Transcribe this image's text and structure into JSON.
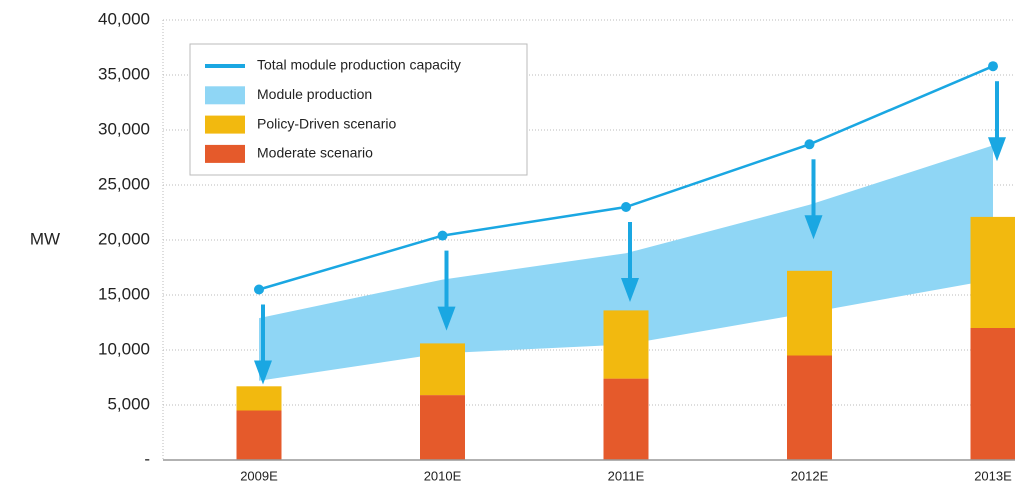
{
  "chart_data": {
    "type": "combo",
    "y_label": "MW",
    "categories": [
      "2009E",
      "2010E",
      "2011E",
      "2012E",
      "2013E"
    ],
    "series": [
      {
        "name": "Total module production capacity",
        "type": "line",
        "color": "#1aa7e2",
        "values": [
          15500,
          20400,
          23000,
          28700,
          35800
        ]
      },
      {
        "name": "Module production",
        "type": "band",
        "color": "#8fd6f5",
        "low": [
          7200,
          9700,
          10500,
          13400,
          16400
        ],
        "high": [
          12900,
          16400,
          18800,
          23200,
          28600
        ]
      },
      {
        "name": "Policy-Driven scenario",
        "type": "bar",
        "color": "#f2b90f",
        "values": [
          2200,
          4700,
          6200,
          7700,
          10100
        ]
      },
      {
        "name": "Moderate scenario",
        "type": "bar",
        "color": "#e55a2b",
        "values": [
          4500,
          5900,
          7400,
          9500,
          12000
        ]
      }
    ],
    "ylim": [
      0,
      40000
    ],
    "yticks": [
      {
        "value": 0,
        "label": "-"
      },
      {
        "value": 5000,
        "label": "5,000"
      },
      {
        "value": 10000,
        "label": "10,000"
      },
      {
        "value": 15000,
        "label": "15,000"
      },
      {
        "value": 20000,
        "label": "20,000"
      },
      {
        "value": 25000,
        "label": "25,000"
      },
      {
        "value": 30000,
        "label": "30,000"
      },
      {
        "value": 35000,
        "label": "35,000"
      },
      {
        "value": 40000,
        "label": "40,000"
      }
    ],
    "grid": true
  }
}
